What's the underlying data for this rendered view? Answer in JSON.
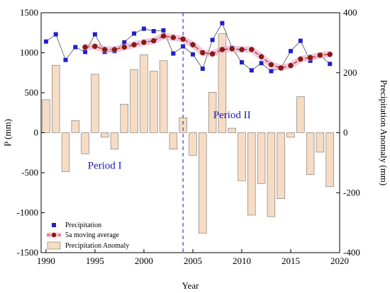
{
  "chart_data": {
    "type": "bar",
    "xlabel": "Year",
    "ylabel": "P (mm)",
    "y2label": "Precipitation Anomaly (mm)",
    "xlim": [
      1989.5,
      2020
    ],
    "ylim": [
      -1500,
      1500
    ],
    "y2lim": [
      -400,
      400
    ],
    "xticks": [
      1990,
      1995,
      2000,
      2005,
      2010,
      2015,
      2020
    ],
    "yticks": [
      -1500,
      -1000,
      -500,
      0,
      500,
      1000,
      1500
    ],
    "y2ticks": [
      -400,
      -200,
      0,
      200,
      400
    ],
    "grid": false,
    "legend_position": "bottom-left",
    "divider_year": 2004,
    "years": [
      1990,
      1991,
      1992,
      1993,
      1994,
      1995,
      1996,
      1997,
      1998,
      1999,
      2000,
      2001,
      2002,
      2003,
      2004,
      2005,
      2006,
      2007,
      2008,
      2009,
      2010,
      2011,
      2012,
      2013,
      2014,
      2015,
      2016,
      2017,
      2018,
      2019
    ],
    "series": [
      {
        "name": "Precipitation",
        "kind": "line-markers",
        "axis": "left",
        "values": [
          1140,
          1230,
          910,
          1070,
          1010,
          1230,
          1010,
          1020,
          1130,
          1240,
          1300,
          1270,
          1280,
          990,
          1080,
          980,
          800,
          1160,
          1370,
          1060,
          880,
          780,
          870,
          770,
          810,
          1020,
          1150,
          900,
          970,
          860
        ]
      },
      {
        "name": "5a moving average",
        "kind": "smoothed-line",
        "axis": "left",
        "values": [
          null,
          null,
          null,
          null,
          1070,
          1080,
          1040,
          1040,
          1070,
          1100,
          1130,
          1150,
          1210,
          1190,
          1170,
          1100,
          1000,
          985,
          1040,
          1050,
          1040,
          1040,
          950,
          850,
          810,
          840,
          920,
          940,
          970,
          980
        ]
      },
      {
        "name": "Precipitation Anomaly",
        "kind": "bar",
        "axis": "right",
        "values": [
          110,
          225,
          -130,
          40,
          -70,
          195,
          -15,
          -55,
          95,
          210,
          260,
          205,
          240,
          -55,
          50,
          -75,
          -335,
          135,
          330,
          15,
          -160,
          -275,
          -170,
          -280,
          -220,
          -15,
          120,
          -140,
          -65,
          -180
        ]
      }
    ],
    "annotations": [
      {
        "text": "Period I",
        "x": 1996,
        "y": -450
      },
      {
        "text": "Period II",
        "x": 2009,
        "y": 180
      }
    ]
  },
  "colors": {
    "precip_line": "#333333",
    "precip_marker": "#1f1fd0",
    "ma_line": "#c8271b",
    "ma_marker": "#8b1a10",
    "ma_band": "#e6a2c8",
    "bar_fill": "#f7dcc4",
    "bar_stroke": "#6e6e6e",
    "divider": "#3b3bd6",
    "period_text": "#1a1aa8"
  }
}
